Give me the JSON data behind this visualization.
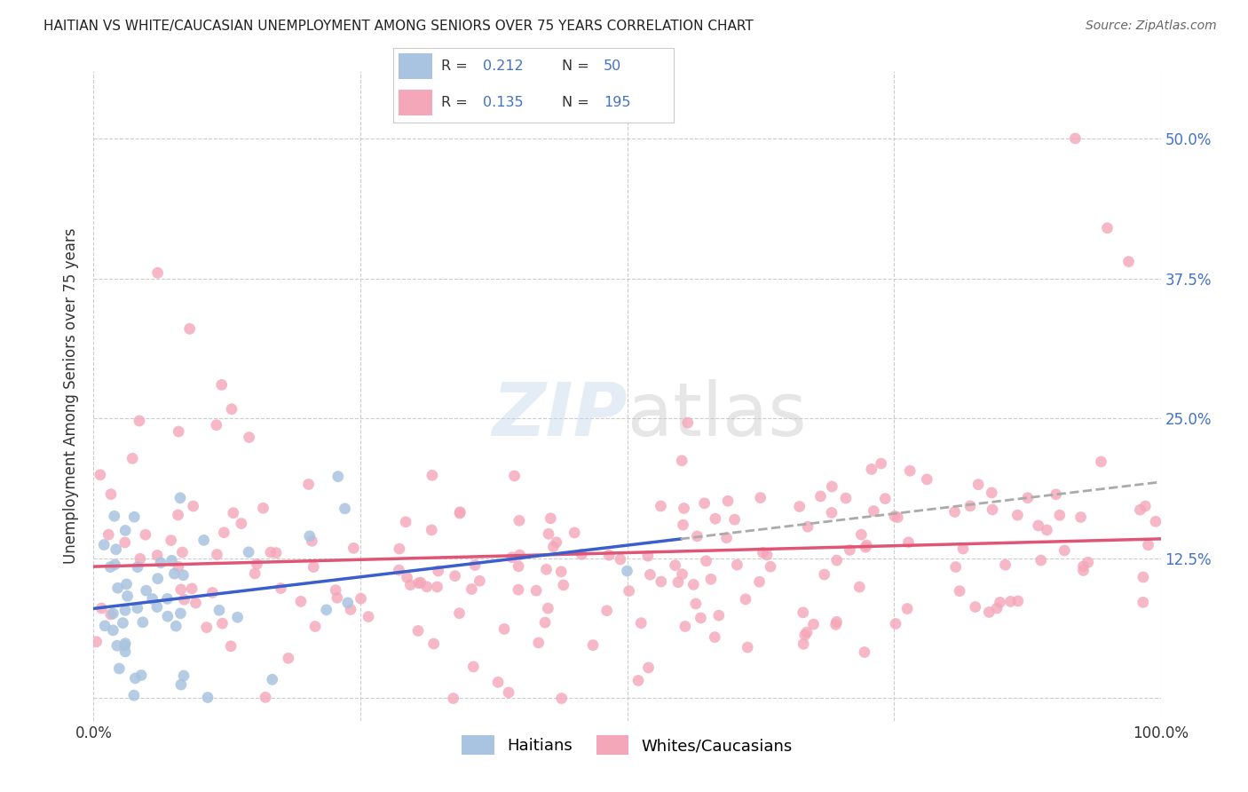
{
  "title": "HAITIAN VS WHITE/CAUCASIAN UNEMPLOYMENT AMONG SENIORS OVER 75 YEARS CORRELATION CHART",
  "source": "Source: ZipAtlas.com",
  "ylabel": "Unemployment Among Seniors over 75 years",
  "x_min": 0.0,
  "x_max": 1.0,
  "y_min": -0.02,
  "y_max": 0.56,
  "y_ticks": [
    0.0,
    0.125,
    0.25,
    0.375,
    0.5
  ],
  "y_tick_labels_right": [
    "",
    "12.5%",
    "25.0%",
    "37.5%",
    "50.0%"
  ],
  "x_ticks": [
    0.0,
    0.25,
    0.5,
    0.75,
    1.0
  ],
  "x_tick_labels": [
    "0.0%",
    "",
    "",
    "",
    "100.0%"
  ],
  "haitian_color": "#a8c4e0",
  "white_color": "#f4a7b9",
  "haitian_line_color": "#3a5fcd",
  "white_line_color": "#e05575",
  "haitian_R": 0.212,
  "haitian_N": 50,
  "white_R": 0.135,
  "white_N": 195,
  "legend_label_haitian": "Haitians",
  "legend_label_white": "Whites/Caucasians",
  "watermark_zip": "ZIP",
  "watermark_atlas": "atlas",
  "background_color": "#ffffff",
  "grid_color": "#cccccc",
  "title_color": "#222222",
  "source_color": "#666666",
  "right_axis_color": "#4472c4",
  "legend_R_color": "#333333",
  "legend_N_color": "#4472c4",
  "haitian_seed": 42,
  "white_seed": 123
}
